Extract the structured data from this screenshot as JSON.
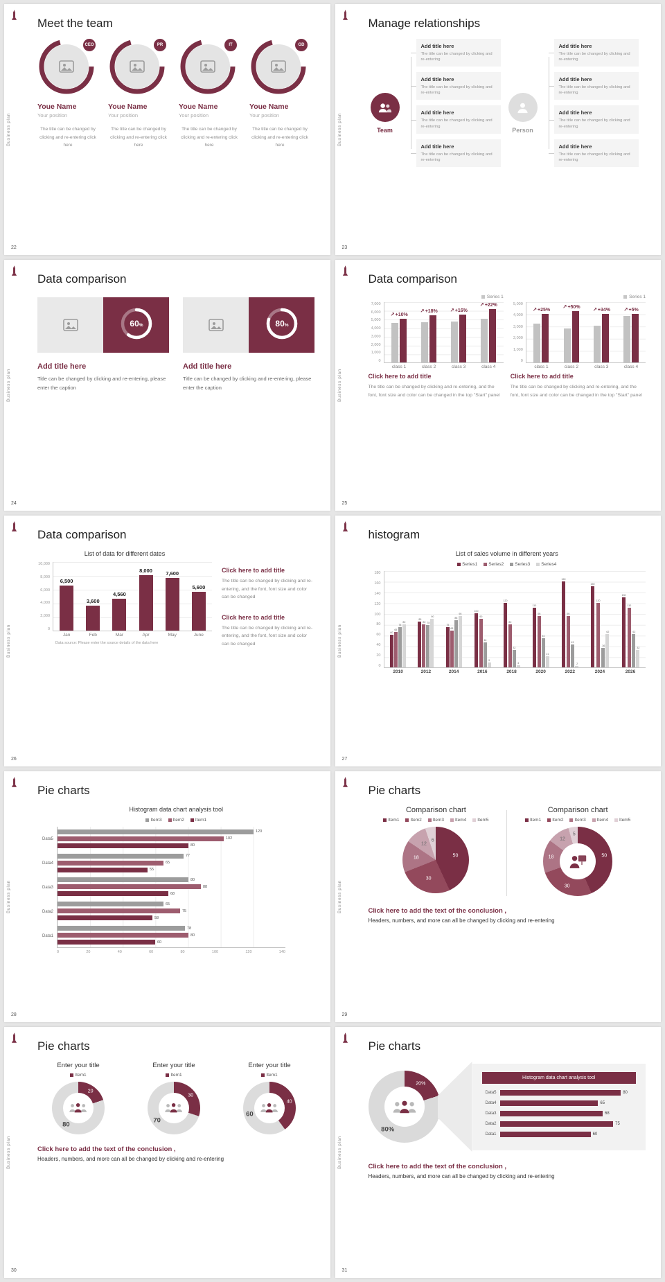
{
  "meta": {
    "sidebar_text": "Business plan"
  },
  "colors": {
    "accent": "#7a2f45",
    "accent2": "#9d5c6e",
    "gray_bar": "#c2c2c2",
    "pie": [
      "#7a2f45",
      "#93495c",
      "#ad7485",
      "#c7a2ae",
      "#e0d0d6"
    ]
  },
  "slides": {
    "s22": {
      "page": "22",
      "title": "Meet the team",
      "members": [
        {
          "badge": "CEO",
          "name": "Youe Name",
          "position": "Your position",
          "caption": "The title can be changed by clicking and re-entering click here"
        },
        {
          "badge": "PR",
          "name": "Youe Name",
          "position": "Your position",
          "caption": "The title can be changed by clicking and re-entering click here"
        },
        {
          "badge": "IT",
          "name": "Youe Name",
          "position": "Your position",
          "caption": "The title can be changed by clicking and re-entering click here"
        },
        {
          "badge": "GD",
          "name": "Youe Name",
          "position": "Your position",
          "caption": "The title can be changed by clicking and re-entering click here"
        }
      ]
    },
    "s23": {
      "page": "23",
      "title": "Manage relationships",
      "team_label": "Team",
      "person_label": "Person",
      "box_title": "Add title here",
      "box_text": "The title can be changed by clicking and re-entering"
    },
    "s24": {
      "page": "24",
      "title": "Data comparison",
      "cards": [
        {
          "percent": 60,
          "title": "Add title here",
          "text": "Title can be changed by clicking and re-entering, please enter the caption"
        },
        {
          "percent": 80,
          "title": "Add title here",
          "text": "Title can be changed by clicking and re-entering, please enter the caption"
        }
      ]
    },
    "s25": {
      "page": "25",
      "title": "Data comparison",
      "charts": [
        {
          "legend": "Series 1",
          "ymax": 7000,
          "yticks": [
            "7,000",
            "6,000",
            "5,000",
            "4,000",
            "3,000",
            "2,000",
            "1,000",
            "0"
          ],
          "categories": [
            "class 1",
            "class 2",
            "class 3",
            "class 4"
          ],
          "base": [
            4500,
            4600,
            4700,
            5000
          ],
          "grow": [
            5000,
            5400,
            5500,
            6100
          ],
          "labels": [
            "+10%",
            "+18%",
            "+16%",
            "+22%"
          ],
          "title": "Click here to add title",
          "text": "The title can be changed by clicking and re-entering, and the font, font size and color can be changed in the top \"Start\" panel"
        },
        {
          "legend": "Series 1",
          "ymax": 5000,
          "yticks": [
            "5,000",
            "4,000",
            "3,000",
            "2,000",
            "1,000",
            "0"
          ],
          "categories": [
            "class 1",
            "class 2",
            "class 3",
            "class 4"
          ],
          "base": [
            3200,
            2800,
            3000,
            3800
          ],
          "grow": [
            4000,
            4200,
            4000,
            4000
          ],
          "labels": [
            "+25%",
            "+50%",
            "+34%",
            "+5%"
          ],
          "title": "Click here to add title",
          "text": "The title can be changed by clicking and re-entering, and the font, font size and color can be changed in the top \"Start\" panel"
        }
      ]
    },
    "s26": {
      "page": "26",
      "title": "Data comparison",
      "chart": {
        "title": "List of data for different dates",
        "ymax": 10000,
        "yticks": [
          "10,000",
          "8,000",
          "6,000",
          "4,000",
          "2,000",
          "0"
        ],
        "categories": [
          "Jan",
          "Feb",
          "Mar",
          "Apr",
          "May",
          "June"
        ],
        "values": [
          6500,
          3600,
          4560,
          8000,
          7600,
          5600
        ],
        "labels": [
          "6,500",
          "3,600",
          "4,560",
          "8,000",
          "7,600",
          "5,600"
        ],
        "source": "Data source: Please enter the source details of the data here"
      },
      "blocks": [
        {
          "title": "Click here to add title",
          "text": "The title can be changed by clicking and re-entering, and the font, font size and color can be changed"
        },
        {
          "title": "Click here to add title",
          "text": "The title can be changed by clicking and re-entering, and the font, font size and color can be changed"
        }
      ]
    },
    "s27": {
      "page": "27",
      "title": "histogram",
      "chart": {
        "title": "List of sales volume in different years",
        "legend": [
          "Series1",
          "Series2",
          "Series3",
          "Series4"
        ],
        "colors": [
          "#7a2f45",
          "#9d5c6e",
          "#9c9c9c",
          "#d6d6d6"
        ],
        "ymax": 180,
        "yticks": [
          "180",
          "160",
          "140",
          "120",
          "100",
          "80",
          "60",
          "40",
          "20",
          "0"
        ],
        "years": [
          "2010",
          "2012",
          "2014",
          "2016",
          "2018",
          "2020",
          "2022",
          "2024",
          "2026"
        ],
        "values": [
          [
            60,
            65,
            75,
            80
          ],
          [
            85,
            80,
            78,
            90
          ],
          [
            75,
            68,
            88,
            95
          ],
          [
            100,
            90,
            46,
            9
          ],
          [
            120,
            80,
            32,
            4
          ],
          [
            110,
            95,
            54,
            21
          ],
          [
            160,
            95,
            43,
            2
          ],
          [
            150,
            120,
            36,
            62
          ],
          [
            130,
            110,
            62,
            32
          ]
        ]
      }
    },
    "s28": {
      "page": "28",
      "title": "Pie charts",
      "chart": {
        "title": "Histogram data chart analysis tool",
        "legend": [
          "Item3",
          "Item2",
          "Item1"
        ],
        "colors": [
          "#9c9c9c",
          "#9d5c6e",
          "#7a2f45"
        ],
        "xmax": 140,
        "xticks": [
          "0",
          "20",
          "40",
          "60",
          "80",
          "100",
          "120",
          "140"
        ],
        "categories": [
          "Data5",
          "Data4",
          "Data3",
          "Data2",
          "Data1"
        ],
        "values": [
          [
            120,
            102,
            80
          ],
          [
            77,
            65,
            55
          ],
          [
            80,
            88,
            68
          ],
          [
            65,
            75,
            58
          ],
          [
            78,
            80,
            60
          ]
        ]
      }
    },
    "s29": {
      "page": "29",
      "title": "Pie charts",
      "left": {
        "title": "Comparison chart",
        "legend": [
          "Item1",
          "Item2",
          "Item3",
          "Item4",
          "Item5"
        ],
        "values": [
          50,
          30,
          18,
          12,
          6
        ]
      },
      "right": {
        "title": "Comparison chart",
        "legend": [
          "Item1",
          "Item2",
          "Item3",
          "Item4",
          "Item5"
        ],
        "values": [
          50,
          30,
          18,
          12,
          5
        ]
      },
      "conclusion_title": "Click here to add the text of the conclusion ,",
      "conclusion_text": "Headers, numbers, and more can all be changed by clicking and re-entering"
    },
    "s30": {
      "page": "30",
      "title": "Pie charts",
      "donuts": [
        {
          "title": "Enter your title",
          "legend": "Item1",
          "value": 20,
          "remainder": 80
        },
        {
          "title": "Enter your title",
          "legend": "Item1",
          "value": 30,
          "remainder": 70
        },
        {
          "title": "Enter your title",
          "legend": "Item1",
          "value": 40,
          "remainder": 60
        }
      ],
      "conclusion_title": "Click here to add the text of the conclusion ,",
      "conclusion_text": "Headers, numbers, and more can all be changed by clicking and re-entering"
    },
    "s31": {
      "page": "31",
      "title": "Pie charts",
      "donut": {
        "value": 20,
        "small_pct": "20%",
        "big_pct": "80%"
      },
      "panel": {
        "title": "Histogram data chart analysis tool",
        "categories": [
          "Data5",
          "Data4",
          "Data3",
          "Data2",
          "Data1"
        ],
        "values": [
          80,
          65,
          68,
          75,
          60
        ],
        "xmax": 90
      },
      "conclusion_title": "Click here to add the text of the conclusion ,",
      "conclusion_text": "Headers, numbers, and more can all be changed by clicking and re-entering"
    }
  }
}
